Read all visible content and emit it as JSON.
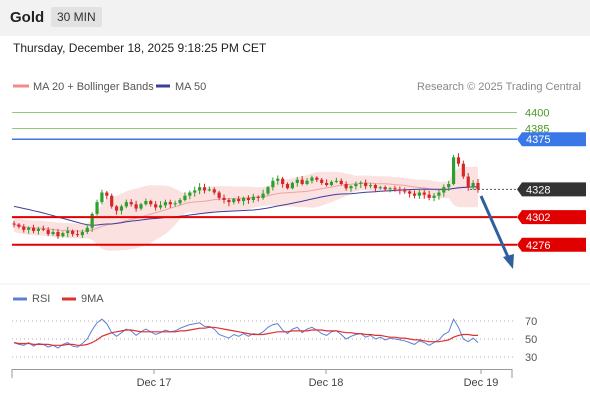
{
  "header": {
    "title": "Gold",
    "timeframe": "30 MIN"
  },
  "datetime": "Thursday, December 18, 2025 9:18:25 PM CET",
  "legend": {
    "ma20": "MA 20 + Bollinger Bands",
    "ma50": "MA 50",
    "copyright": "Research © 2025 Trading Central",
    "rsi": "RSI",
    "ma9": "9MA"
  },
  "colors": {
    "up": "#2ca02c",
    "down": "#d62728",
    "band": "#fbd7d7",
    "ma50": "#3a3f9e",
    "resistance_green": "#8fc97a",
    "blue_level": "#3b78e7",
    "red_level": "#e00000",
    "current": "#333333",
    "rsi": "#5c7fd6",
    "rsi_ma": "#e03030",
    "arrow": "#2f5f9e"
  },
  "chart_data": [
    {
      "type": "candlestick",
      "ylim": [
        4258,
        4408
      ],
      "x_ticks": [
        "Dec 17",
        "Dec 18",
        "Dec 19"
      ],
      "levels": [
        {
          "value": 4400,
          "label": "4400",
          "style": "green"
        },
        {
          "value": 4385,
          "label": "4385",
          "style": "green"
        },
        {
          "value": 4375,
          "label": "4375",
          "style": "blue"
        },
        {
          "value": 4328,
          "label": "4328",
          "style": "current"
        },
        {
          "value": 4302,
          "label": "4302",
          "style": "red"
        },
        {
          "value": 4276,
          "label": "4276",
          "style": "red"
        }
      ],
      "close": [
        4295,
        4293,
        4290,
        4292,
        4289,
        4291,
        4290,
        4286,
        4288,
        4284,
        4287,
        4289,
        4286,
        4285,
        4288,
        4292,
        4305,
        4316,
        4325,
        4322,
        4312,
        4308,
        4312,
        4316,
        4314,
        4310,
        4314,
        4317,
        4314,
        4311,
        4313,
        4316,
        4314,
        4315,
        4318,
        4322,
        4325,
        4327,
        4330,
        4327,
        4328,
        4325,
        4320,
        4318,
        4316,
        4319,
        4317,
        4320,
        4318,
        4321,
        4320,
        4324,
        4330,
        4336,
        4338,
        4333,
        4329,
        4334,
        4337,
        4333,
        4336,
        4339,
        4337,
        4334,
        4332,
        4335,
        4336,
        4333,
        4329,
        4331,
        4333,
        4334,
        4331,
        4332,
        4329,
        4330,
        4328,
        4329,
        4328,
        4327,
        4326,
        4324,
        4322,
        4325,
        4323,
        4320,
        4322,
        4325,
        4330,
        4333,
        4358,
        4352,
        4340,
        4330,
        4334,
        4328
      ],
      "rsi": {
        "ylim": [
          30,
          70
        ],
        "ticks": [
          70,
          50,
          30
        ],
        "values": [
          46,
          44,
          43,
          46,
          42,
          45,
          44,
          41,
          43,
          40,
          44,
          46,
          42,
          41,
          45,
          50,
          60,
          68,
          72,
          67,
          57,
          53,
          57,
          61,
          59,
          54,
          58,
          61,
          58,
          55,
          57,
          60,
          58,
          59,
          62,
          64,
          66,
          67,
          68,
          64,
          64,
          61,
          55,
          53,
          51,
          55,
          53,
          56,
          53,
          56,
          55,
          58,
          63,
          66,
          67,
          60,
          56,
          61,
          63,
          57,
          61,
          63,
          60,
          56,
          54,
          58,
          59,
          55,
          50,
          53,
          55,
          56,
          52,
          54,
          50,
          52,
          49,
          51,
          50,
          49,
          48,
          46,
          44,
          48,
          46,
          43,
          46,
          49,
          55,
          58,
          72,
          63,
          50,
          47,
          51,
          46
        ],
        "ma9": [
          46,
          45,
          45,
          45,
          44,
          44,
          44,
          44,
          43,
          43,
          43,
          44,
          44,
          43,
          43,
          44,
          46,
          49,
          53,
          55,
          57,
          58,
          59,
          60,
          60,
          59,
          58,
          58,
          58,
          58,
          58,
          58,
          58,
          58,
          59,
          59,
          60,
          61,
          62,
          62,
          63,
          63,
          62,
          61,
          60,
          59,
          58,
          57,
          56,
          55,
          55,
          55,
          56,
          57,
          58,
          58,
          58,
          59,
          59,
          59,
          59,
          60,
          60,
          60,
          59,
          59,
          59,
          58,
          57,
          57,
          56,
          56,
          55,
          55,
          54,
          54,
          53,
          52,
          52,
          51,
          51,
          50,
          49,
          49,
          48,
          47,
          47,
          47,
          48,
          49,
          52,
          54,
          55,
          55,
          54,
          54
        ]
      }
    }
  ]
}
